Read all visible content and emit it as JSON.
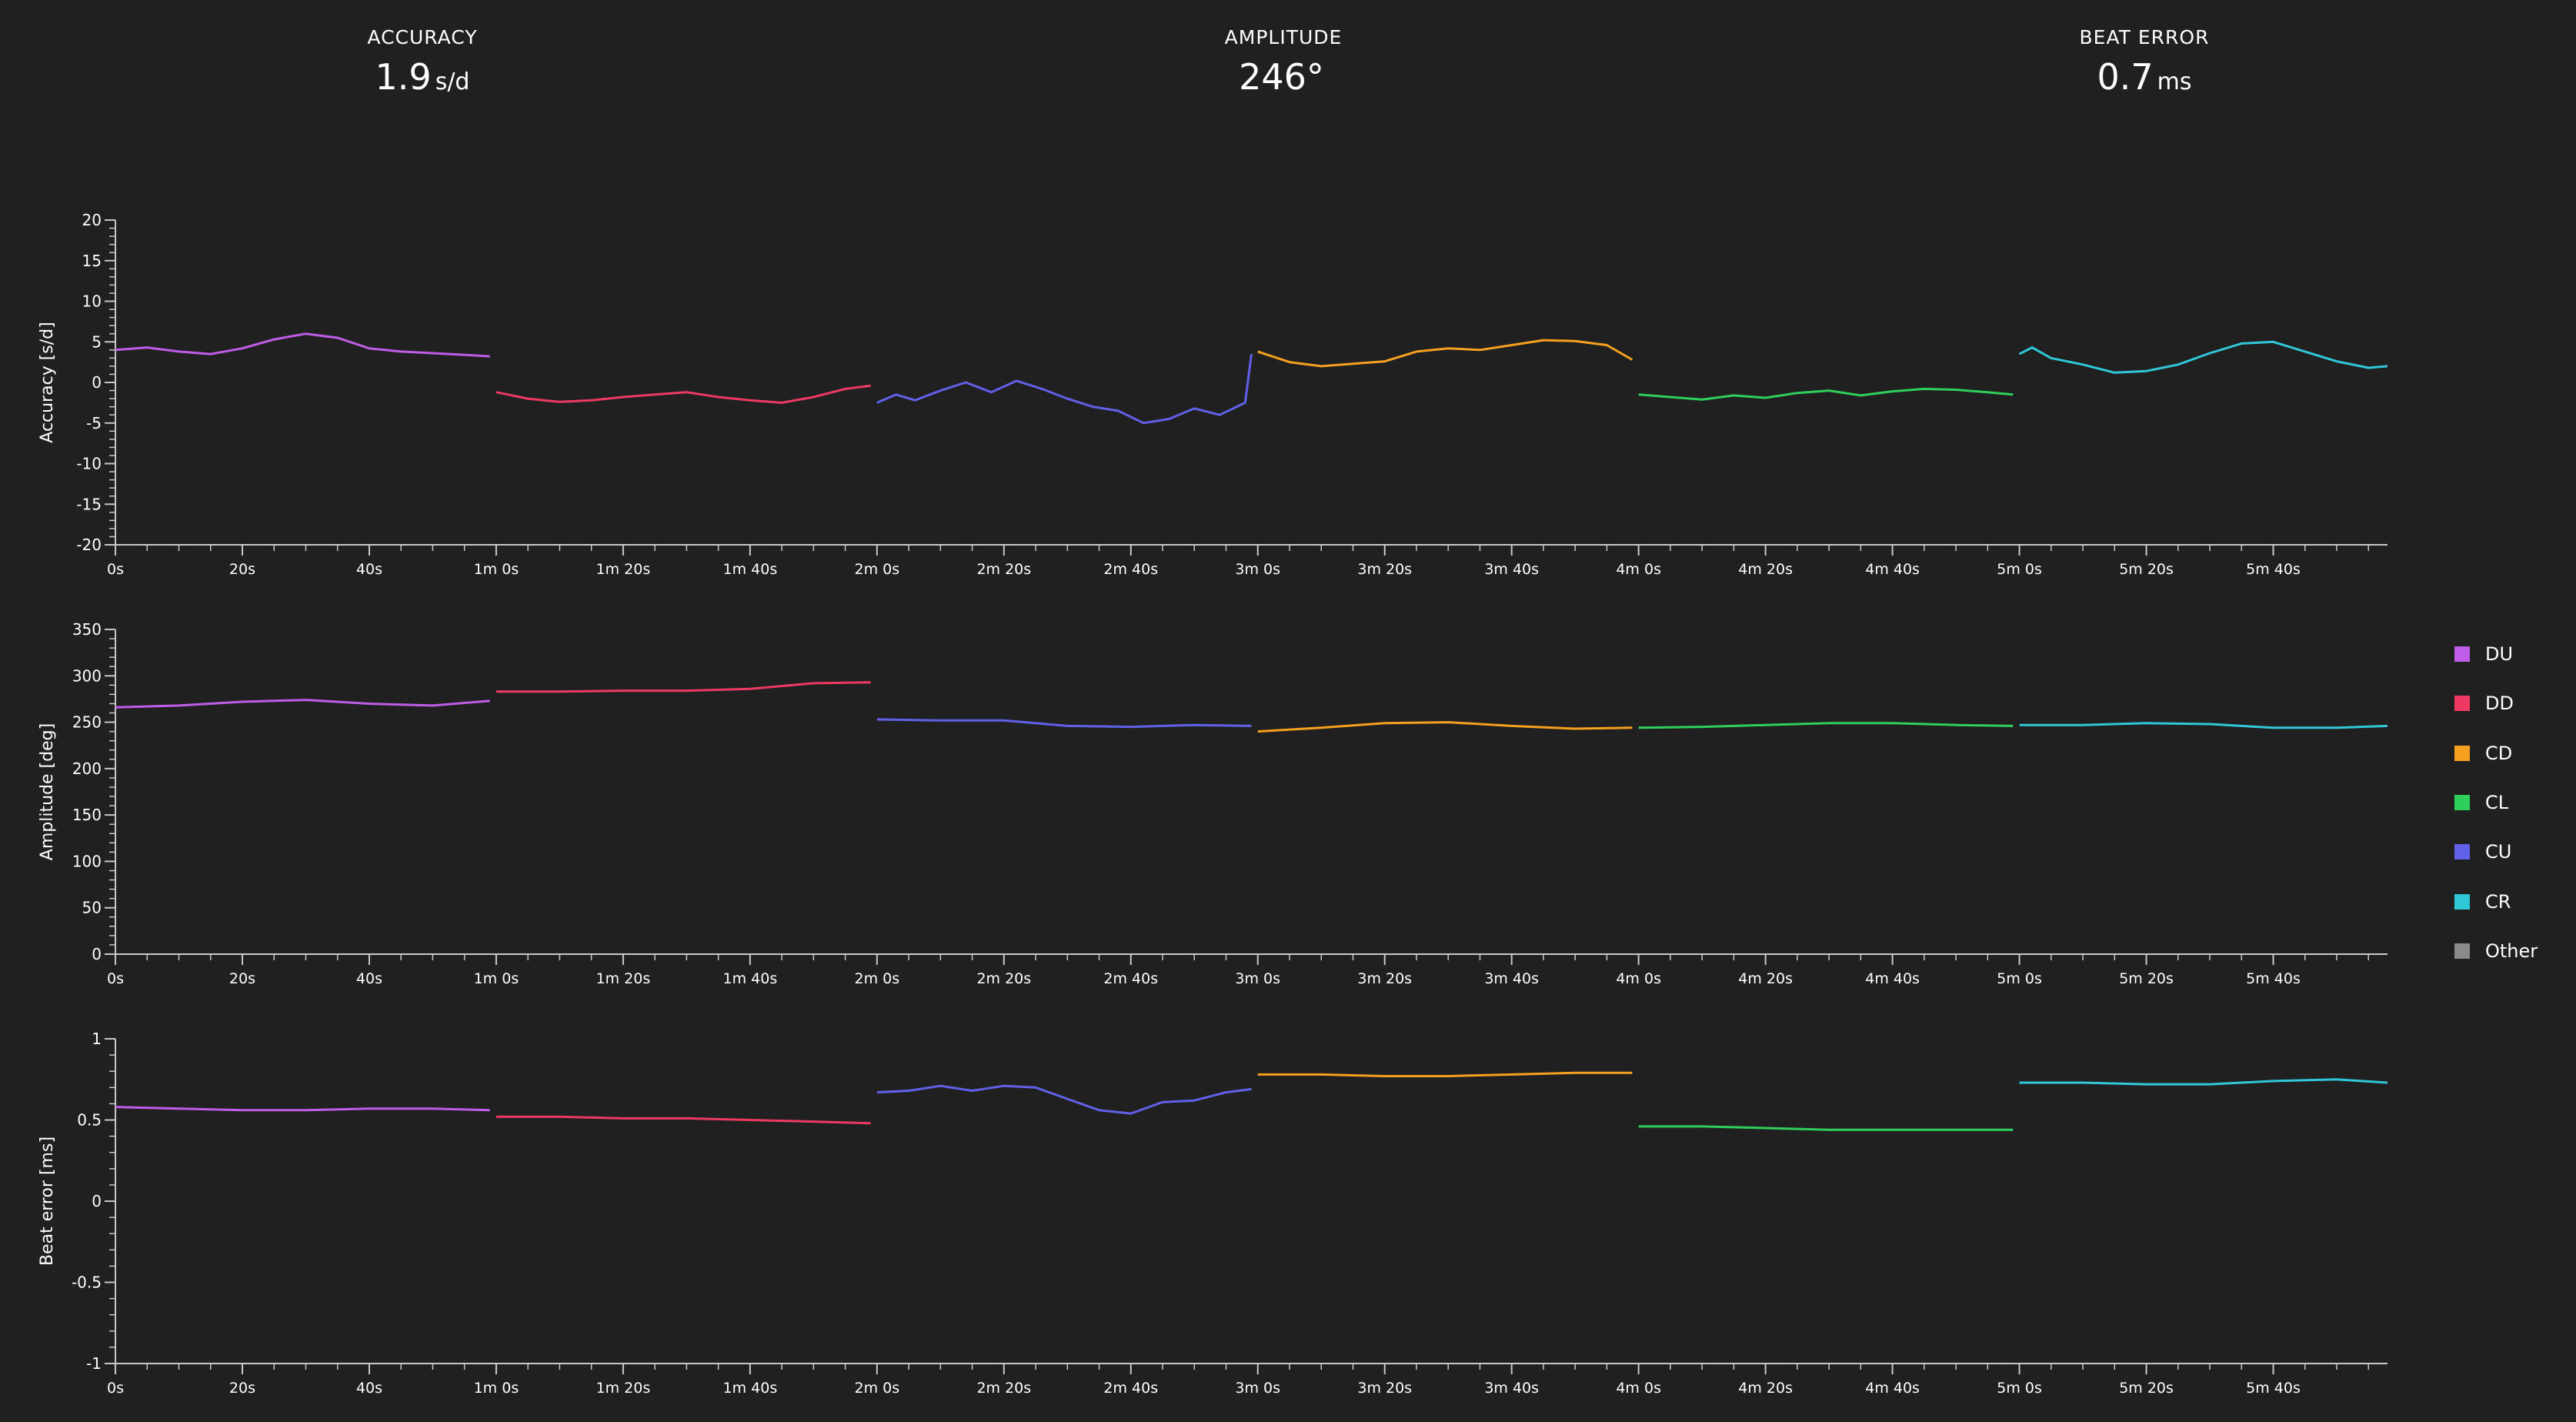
{
  "stats": {
    "accuracy": {
      "label": "ACCURACY",
      "value": "1.9",
      "unit": "s/d"
    },
    "amplitude": {
      "label": "AMPLITUDE",
      "value": "246°",
      "unit": ""
    },
    "beat_error": {
      "label": "BEAT ERROR",
      "value": "0.7",
      "unit": "ms"
    }
  },
  "legend": [
    {
      "label": "DU",
      "color": "#c05de8"
    },
    {
      "label": "DD",
      "color": "#ee3a63"
    },
    {
      "label": "CD",
      "color": "#f5a01f"
    },
    {
      "label": "CL",
      "color": "#2fcf5c"
    },
    {
      "label": "CU",
      "color": "#6060e8"
    },
    {
      "label": "CR",
      "color": "#30c8d8"
    },
    {
      "label": "Other",
      "color": "#8a8a8a"
    }
  ],
  "chart_data": [
    {
      "type": "line",
      "ylabel": "Accuracy [s/d]",
      "ylim": [
        -20,
        20
      ],
      "yticks": [
        20,
        15,
        10,
        5,
        0,
        -5,
        -10,
        -15,
        -20
      ],
      "xlim": [
        0,
        358
      ],
      "xticks": [
        "0s",
        "20s",
        "40s",
        "1m 0s",
        "1m 20s",
        "1m 40s",
        "2m 0s",
        "2m 20s",
        "2m 40s",
        "3m 0s",
        "3m 20s",
        "3m 40s",
        "4m 0s",
        "4m 20s",
        "4m 40s",
        "5m 0s",
        "5m 20s",
        "5m 40s"
      ],
      "series": [
        {
          "name": "DU",
          "x": [
            0,
            5,
            10,
            15,
            20,
            25,
            30,
            35,
            40,
            45,
            50,
            55,
            59
          ],
          "y": [
            4,
            4.3,
            3.8,
            3.5,
            4.2,
            5.3,
            6,
            5.5,
            4.2,
            3.8,
            3.6,
            3.4,
            3.2
          ]
        },
        {
          "name": "DD",
          "x": [
            60,
            65,
            70,
            75,
            80,
            85,
            90,
            95,
            100,
            105,
            110,
            115,
            119
          ],
          "y": [
            -1.2,
            -2,
            -2.4,
            -2.2,
            -1.8,
            -1.5,
            -1.2,
            -1.8,
            -2.2,
            -2.5,
            -1.8,
            -0.8,
            -0.4
          ]
        },
        {
          "name": "CU",
          "x": [
            120,
            123,
            126,
            130,
            134,
            138,
            142,
            146,
            150,
            154,
            158,
            162,
            166,
            170,
            174,
            178,
            179
          ],
          "y": [
            -2.5,
            -1.5,
            -2.2,
            -1,
            0,
            -1.2,
            0.2,
            -0.8,
            -2,
            -3,
            -3.5,
            -5,
            -4.5,
            -3.2,
            -4,
            -2.5,
            3.5
          ]
        },
        {
          "name": "CD",
          "x": [
            180,
            185,
            190,
            195,
            200,
            205,
            210,
            215,
            220,
            225,
            230,
            235,
            239
          ],
          "y": [
            3.8,
            2.5,
            2,
            2.3,
            2.6,
            3.8,
            4.2,
            4,
            4.6,
            5.2,
            5.1,
            4.6,
            2.8
          ]
        },
        {
          "name": "CL",
          "x": [
            240,
            245,
            250,
            255,
            260,
            265,
            270,
            275,
            280,
            285,
            290,
            295,
            299
          ],
          "y": [
            -1.5,
            -1.8,
            -2.1,
            -1.6,
            -1.9,
            -1.3,
            -1,
            -1.6,
            -1.1,
            -0.8,
            -0.9,
            -1.2,
            -1.5
          ]
        },
        {
          "name": "CR",
          "x": [
            300,
            302,
            305,
            310,
            315,
            320,
            325,
            330,
            335,
            340,
            345,
            350,
            355,
            358
          ],
          "y": [
            3.5,
            4.3,
            3,
            2.2,
            1.2,
            1.4,
            2.2,
            3.6,
            4.8,
            5,
            3.8,
            2.6,
            1.8,
            2
          ]
        }
      ]
    },
    {
      "type": "line",
      "ylabel": "Amplitude [deg]",
      "ylim": [
        0,
        350
      ],
      "yticks": [
        350,
        300,
        250,
        200,
        150,
        100,
        50,
        0
      ],
      "xlim": [
        0,
        358
      ],
      "xticks": [
        "0s",
        "20s",
        "40s",
        "1m 0s",
        "1m 20s",
        "1m 40s",
        "2m 0s",
        "2m 20s",
        "2m 40s",
        "3m 0s",
        "3m 20s",
        "3m 40s",
        "4m 0s",
        "4m 20s",
        "4m 40s",
        "5m 0s",
        "5m 20s",
        "5m 40s"
      ],
      "series": [
        {
          "name": "DU",
          "x": [
            0,
            10,
            20,
            30,
            40,
            50,
            59
          ],
          "y": [
            266,
            268,
            272,
            274,
            270,
            268,
            273
          ]
        },
        {
          "name": "DD",
          "x": [
            60,
            70,
            80,
            90,
            100,
            110,
            119
          ],
          "y": [
            283,
            283,
            284,
            284,
            286,
            292,
            293
          ]
        },
        {
          "name": "CU",
          "x": [
            120,
            130,
            140,
            150,
            160,
            170,
            179
          ],
          "y": [
            253,
            252,
            252,
            246,
            245,
            247,
            246
          ]
        },
        {
          "name": "CD",
          "x": [
            180,
            190,
            200,
            210,
            220,
            230,
            239
          ],
          "y": [
            240,
            244,
            249,
            250,
            246,
            243,
            244
          ]
        },
        {
          "name": "CL",
          "x": [
            240,
            250,
            260,
            270,
            280,
            290,
            299
          ],
          "y": [
            244,
            245,
            247,
            249,
            249,
            247,
            246
          ]
        },
        {
          "name": "CR",
          "x": [
            300,
            310,
            320,
            330,
            340,
            350,
            358
          ],
          "y": [
            247,
            247,
            249,
            248,
            244,
            244,
            246
          ]
        }
      ]
    },
    {
      "type": "line",
      "ylabel": "Beat error [ms]",
      "ylim": [
        -1,
        1
      ],
      "yticks": [
        1,
        0.5,
        0,
        -0.5,
        -1
      ],
      "xlim": [
        0,
        358
      ],
      "xticks": [
        "0s",
        "20s",
        "40s",
        "1m 0s",
        "1m 20s",
        "1m 40s",
        "2m 0s",
        "2m 20s",
        "2m 40s",
        "3m 0s",
        "3m 20s",
        "3m 40s",
        "4m 0s",
        "4m 20s",
        "4m 40s",
        "5m 0s",
        "5m 20s",
        "5m 40s"
      ],
      "series": [
        {
          "name": "DU",
          "x": [
            0,
            10,
            20,
            30,
            40,
            50,
            59
          ],
          "y": [
            0.58,
            0.57,
            0.56,
            0.56,
            0.57,
            0.57,
            0.56
          ]
        },
        {
          "name": "DD",
          "x": [
            60,
            70,
            80,
            90,
            100,
            110,
            119
          ],
          "y": [
            0.52,
            0.52,
            0.51,
            0.51,
            0.5,
            0.49,
            0.48
          ]
        },
        {
          "name": "CU",
          "x": [
            120,
            125,
            130,
            135,
            140,
            145,
            150,
            155,
            160,
            165,
            170,
            175,
            179
          ],
          "y": [
            0.67,
            0.68,
            0.71,
            0.68,
            0.71,
            0.7,
            0.63,
            0.56,
            0.54,
            0.61,
            0.62,
            0.67,
            0.69
          ]
        },
        {
          "name": "CD",
          "x": [
            180,
            190,
            200,
            210,
            220,
            230,
            239
          ],
          "y": [
            0.78,
            0.78,
            0.77,
            0.77,
            0.78,
            0.79,
            0.79
          ]
        },
        {
          "name": "CL",
          "x": [
            240,
            250,
            260,
            270,
            280,
            290,
            299
          ],
          "y": [
            0.46,
            0.46,
            0.45,
            0.44,
            0.44,
            0.44,
            0.44
          ]
        },
        {
          "name": "CR",
          "x": [
            300,
            310,
            320,
            330,
            340,
            350,
            358
          ],
          "y": [
            0.73,
            0.73,
            0.72,
            0.72,
            0.74,
            0.75,
            0.73
          ]
        }
      ]
    }
  ]
}
